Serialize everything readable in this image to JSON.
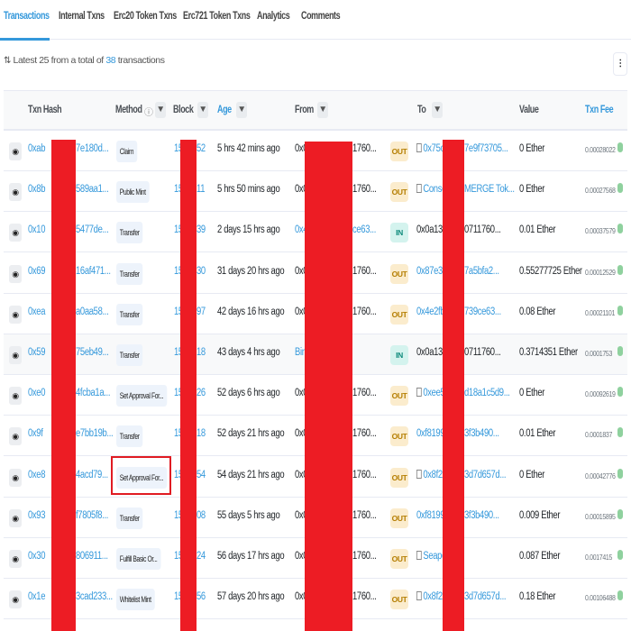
{
  "tabs": [
    {
      "label": "Transactions",
      "active": true
    },
    {
      "label": "Internal Txns"
    },
    {
      "label": "Erc20 Token Txns"
    },
    {
      "label": "Erc721 Token Txns"
    },
    {
      "label": "Analytics"
    },
    {
      "label": "Comments"
    }
  ],
  "summary": {
    "prefix": "Latest 25 from a total of ",
    "count": "38",
    "suffix": " transactions"
  },
  "columns": {
    "hash": "Txn Hash",
    "method": "Method",
    "block": "Block",
    "age": "Age",
    "from": "From",
    "to": "To",
    "value": "Value",
    "fee": "Txn Fee"
  },
  "colors": {
    "accent": "#3498db",
    "redaction": "#ed1c24",
    "out": "#fbeccd",
    "in": "#d4f3ee"
  },
  "rows": [
    {
      "hp": "0xab",
      "hs": "7e180d...",
      "method": "Claim",
      "bp": "15",
      "bs": "52",
      "age": "5 hrs 42 mins ago",
      "fp": "0x0",
      "fs": "1760...",
      "fromLink": false,
      "dir": "OUT",
      "toContract": true,
      "tp": "0x75c",
      "ts": "7e9f73705...",
      "toLink": true,
      "value": "0 Ether",
      "fee": "0.00028022"
    },
    {
      "hp": "0x8b",
      "hs": "589aa1...",
      "method": "Public Mint",
      "bp": "15",
      "bs": "11",
      "age": "5 hrs 50 mins ago",
      "fp": "0x0",
      "fs": "1760...",
      "fromLink": false,
      "dir": "OUT",
      "toContract": true,
      "tp": "Conse",
      "ts": "MERGE Tok...",
      "toLink": true,
      "value": "0 Ether",
      "fee": "0.00027568"
    },
    {
      "hp": "0x10",
      "hs": "5477de...",
      "method": "Transfer",
      "bp": "15",
      "bs": "39",
      "age": "2 days 15 hrs ago",
      "fp": "0x4",
      "fs": "ce63...",
      "fromLink": true,
      "dir": "IN",
      "toContract": false,
      "tp": "0x0a136",
      "ts": "0711760...",
      "toLink": false,
      "value": "0.01 Ether",
      "fee": "0.00037579"
    },
    {
      "hp": "0x69",
      "hs": "16af471...",
      "method": "Transfer",
      "bp": "15",
      "bs": "30",
      "age": "31 days 20 hrs ago",
      "fp": "0x0",
      "fs": "1760...",
      "fromLink": false,
      "dir": "OUT",
      "toContract": false,
      "tp": "0x87e35",
      "ts": "7a5bfa2...",
      "toLink": true,
      "value": "0.55277725 Ether",
      "fee": "0.00012529"
    },
    {
      "hp": "0xea",
      "hs": "a0aa58...",
      "method": "Transfer",
      "bp": "15",
      "bs": "97",
      "age": "42 days 16 hrs ago",
      "fp": "0x0",
      "fs": "1760...",
      "fromLink": false,
      "dir": "OUT",
      "toContract": false,
      "tp": "0x4e2fba",
      "ts": "739ce63...",
      "toLink": true,
      "value": "0.08 Ether",
      "fee": "0.00021101"
    },
    {
      "hp": "0x59",
      "hs": "75eb49...",
      "method": "Transfer",
      "bp": "15",
      "bs": "18",
      "age": "43 days 4 hrs ago",
      "fp": "Bin",
      "fs": "",
      "fromLink": true,
      "dir": "IN",
      "toContract": false,
      "tp": "0x0a136",
      "ts": "0711760...",
      "toLink": false,
      "value": "0.3714351 Ether",
      "fee": "0.0001753",
      "highlight": true
    },
    {
      "hp": "0xe0",
      "hs": "4fcba1a...",
      "method": "Set Approval For...",
      "bp": "15",
      "bs": "26",
      "age": "52 days 6 hrs ago",
      "fp": "0x0",
      "fs": "1760...",
      "fromLink": false,
      "dir": "OUT",
      "toContract": true,
      "tp": "0xee5",
      "ts": "d18a1c5d9...",
      "toLink": true,
      "value": "0 Ether",
      "fee": "0.00092619"
    },
    {
      "hp": "0x9f",
      "hs": "e7bb19b...",
      "method": "Transfer",
      "bp": "15",
      "bs": "18",
      "age": "52 days 21 hrs ago",
      "fp": "0x0",
      "fs": "1760...",
      "fromLink": false,
      "dir": "OUT",
      "toContract": false,
      "tp": "0xf8199",
      "ts": "3f3b490...",
      "toLink": true,
      "value": "0.01 Ether",
      "fee": "0.0001837"
    },
    {
      "hp": "0xe8",
      "hs": "4acd79...",
      "method": "Set Approval For...",
      "bp": "15",
      "bs": "54",
      "age": "54 days 21 hrs ago",
      "fp": "0x0",
      "fs": "1760...",
      "fromLink": false,
      "dir": "OUT",
      "toContract": true,
      "tp": "0x8f2c",
      "ts": "3d7d657d...",
      "toLink": true,
      "value": "0 Ether",
      "fee": "0.00042776"
    },
    {
      "hp": "0x93",
      "hs": "f7805f8...",
      "method": "Transfer",
      "bp": "15",
      "bs": "08",
      "age": "55 days 5 hrs ago",
      "fp": "0x0",
      "fs": "1760...",
      "fromLink": false,
      "dir": "OUT",
      "toContract": false,
      "tp": "0xf8199",
      "ts": "3f3b490...",
      "toLink": true,
      "value": "0.009 Ether",
      "fee": "0.00015895"
    },
    {
      "hp": "0x30",
      "hs": "806911...",
      "method": "Fulfill Basic Or...",
      "bp": "15",
      "bs": "24",
      "age": "56 days 17 hrs ago",
      "fp": "0x0",
      "fs": "1760...",
      "fromLink": false,
      "dir": "OUT",
      "toContract": true,
      "tp": "Seapo",
      "ts": "",
      "toLink": true,
      "value": "0.087 Ether",
      "fee": "0.0017415"
    },
    {
      "hp": "0x1e",
      "hs": "3cad233...",
      "method": "Whitelist Mint",
      "bp": "15",
      "bs": "56",
      "age": "57 days 20 hrs ago",
      "fp": "0x0",
      "fs": "1760...",
      "fromLink": false,
      "dir": "OUT",
      "toContract": true,
      "tp": "0x8f2c",
      "ts": "3d7d657d...",
      "toLink": true,
      "value": "0.18 Ether",
      "fee": "0.00106488"
    }
  ]
}
